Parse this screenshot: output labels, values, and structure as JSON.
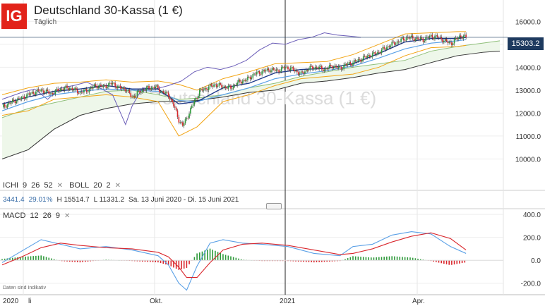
{
  "header": {
    "title": "Deutschland 30-Kassa (1 €)",
    "subtitle": "Täglich",
    "logo": "IG"
  },
  "indicators": {
    "ichi": {
      "label": "ICHI",
      "p1": "9",
      "p2": "26",
      "p3": "52"
    },
    "boll": {
      "label": "BOLL",
      "p1": "20",
      "p2": "2"
    },
    "macd": {
      "label": "MACD",
      "p1": "12",
      "p2": "26",
      "p3": "9"
    },
    "readout": {
      "v1": "3441.4",
      "v2": "29.01%",
      "high": "H 15514.7",
      "low": "L 11331.2",
      "range": "Sa. 13 Juni 2020 - Di. 15 Juni 2021"
    }
  },
  "last_price": "15303.2",
  "watermark": "Deutschland 30-Kassa (1 €)",
  "disclaimer": "Daten sind Indikativ",
  "colors": {
    "up": "#2e9a3a",
    "down": "#d9262c",
    "ichimoku_cloud": "#eef7ea",
    "boll": "#f2a516",
    "tenkan": "#1e3a8a",
    "kijun": "#5aa0e6",
    "chikou": "#6b5db8",
    "macd": "#5aa0e6",
    "signal": "#d9262c"
  },
  "chart_data": [
    {
      "type": "candlestick",
      "ylim": [
        9000,
        16500
      ],
      "yticks": [
        "16000.0",
        "15000.0",
        "14000.0",
        "13000.0",
        "12000.0",
        "11000.0",
        "10000.0"
      ],
      "xticks": [
        "2020",
        "li",
        "Okt.",
        "2021",
        "Apr."
      ],
      "close_path": [
        [
          0,
          12250
        ],
        [
          8,
          12500
        ],
        [
          15,
          12650
        ],
        [
          22,
          12850
        ],
        [
          30,
          13000
        ],
        [
          38,
          12850
        ],
        [
          45,
          13050
        ],
        [
          52,
          13100
        ],
        [
          60,
          12900
        ],
        [
          66,
          13000
        ],
        [
          72,
          13200
        ],
        [
          78,
          13150
        ],
        [
          85,
          13300
        ],
        [
          90,
          13100
        ],
        [
          95,
          13050
        ],
        [
          100,
          12700
        ],
        [
          105,
          12900
        ],
        [
          110,
          13050
        ],
        [
          118,
          13150
        ],
        [
          122,
          12950
        ],
        [
          128,
          12800
        ],
        [
          133,
          12200
        ],
        [
          136,
          11700
        ],
        [
          139,
          11450
        ],
        [
          143,
          11900
        ],
        [
          147,
          12400
        ],
        [
          152,
          12950
        ],
        [
          158,
          13100
        ],
        [
          164,
          13250
        ],
        [
          170,
          13150
        ],
        [
          176,
          13100
        ],
        [
          182,
          13350
        ],
        [
          188,
          13450
        ],
        [
          194,
          13700
        ],
        [
          200,
          13800
        ],
        [
          206,
          13900
        ],
        [
          212,
          13850
        ],
        [
          218,
          14000
        ],
        [
          224,
          13900
        ],
        [
          230,
          13700
        ],
        [
          236,
          13950
        ],
        [
          242,
          14000
        ],
        [
          248,
          13900
        ],
        [
          254,
          14050
        ],
        [
          260,
          13950
        ],
        [
          264,
          14100
        ],
        [
          270,
          14200
        ],
        [
          276,
          14350
        ],
        [
          282,
          14500
        ],
        [
          288,
          14600
        ],
        [
          294,
          14800
        ],
        [
          300,
          15000
        ],
        [
          306,
          15150
        ],
        [
          312,
          15300
        ],
        [
          318,
          15250
        ],
        [
          324,
          15200
        ],
        [
          330,
          15350
        ],
        [
          336,
          15300
        ],
        [
          342,
          15100
        ],
        [
          346,
          15050
        ],
        [
          352,
          15350
        ],
        [
          357,
          15303
        ]
      ],
      "tenkan": [
        [
          0,
          12400
        ],
        [
          20,
          12700
        ],
        [
          40,
          12950
        ],
        [
          60,
          13050
        ],
        [
          80,
          13200
        ],
        [
          100,
          13050
        ],
        [
          120,
          13050
        ],
        [
          136,
          12400
        ],
        [
          150,
          12500
        ],
        [
          170,
          13100
        ],
        [
          190,
          13300
        ],
        [
          210,
          13750
        ],
        [
          230,
          13900
        ],
        [
          250,
          13950
        ],
        [
          270,
          14150
        ],
        [
          290,
          14600
        ],
        [
          310,
          15100
        ],
        [
          330,
          15250
        ],
        [
          350,
          15250
        ],
        [
          357,
          15300
        ]
      ],
      "kijun": [
        [
          0,
          12100
        ],
        [
          20,
          12500
        ],
        [
          40,
          12800
        ],
        [
          60,
          12950
        ],
        [
          80,
          13050
        ],
        [
          100,
          13000
        ],
        [
          120,
          12950
        ],
        [
          136,
          12550
        ],
        [
          150,
          12500
        ],
        [
          170,
          12800
        ],
        [
          190,
          13100
        ],
        [
          210,
          13500
        ],
        [
          230,
          13700
        ],
        [
          250,
          13850
        ],
        [
          270,
          14050
        ],
        [
          290,
          14400
        ],
        [
          310,
          14800
        ],
        [
          330,
          15050
        ],
        [
          350,
          15150
        ],
        [
          357,
          15200
        ]
      ],
      "chikou": [
        [
          0,
          12600
        ],
        [
          15,
          12900
        ],
        [
          25,
          13050
        ],
        [
          35,
          12600
        ],
        [
          45,
          13100
        ],
        [
          55,
          13200
        ],
        [
          65,
          13350
        ],
        [
          75,
          13100
        ],
        [
          85,
          12800
        ],
        [
          95,
          11500
        ],
        [
          100,
          12300
        ],
        [
          108,
          13100
        ],
        [
          118,
          13050
        ],
        [
          128,
          13200
        ],
        [
          138,
          13400
        ],
        [
          148,
          13800
        ],
        [
          158,
          14000
        ],
        [
          168,
          13900
        ],
        [
          178,
          14050
        ],
        [
          188,
          14300
        ],
        [
          198,
          14750
        ],
        [
          208,
          15050
        ],
        [
          218,
          15000
        ],
        [
          228,
          15200
        ],
        [
          238,
          15300
        ],
        [
          248,
          15500
        ],
        [
          258,
          15400
        ],
        [
          268,
          15350
        ],
        [
          276,
          15300
        ]
      ],
      "senkou_a": [
        [
          0,
          11800
        ],
        [
          20,
          12200
        ],
        [
          40,
          12450
        ],
        [
          60,
          12700
        ],
        [
          80,
          12950
        ],
        [
          100,
          13000
        ],
        [
          120,
          12800
        ],
        [
          136,
          12600
        ],
        [
          150,
          12650
        ],
        [
          170,
          12800
        ],
        [
          190,
          13100
        ],
        [
          210,
          13300
        ],
        [
          230,
          13600
        ],
        [
          250,
          13800
        ],
        [
          270,
          14000
        ],
        [
          290,
          14150
        ],
        [
          310,
          14300
        ],
        [
          330,
          14700
        ],
        [
          350,
          14900
        ],
        [
          370,
          15050
        ],
        [
          383,
          15150
        ]
      ],
      "senkou_b": [
        [
          0,
          10000
        ],
        [
          20,
          10400
        ],
        [
          40,
          11300
        ],
        [
          60,
          11900
        ],
        [
          80,
          12200
        ],
        [
          100,
          12400
        ],
        [
          120,
          12500
        ],
        [
          136,
          12500
        ],
        [
          150,
          12550
        ],
        [
          170,
          12700
        ],
        [
          190,
          12900
        ],
        [
          210,
          13000
        ],
        [
          230,
          13300
        ],
        [
          250,
          13400
        ],
        [
          270,
          13550
        ],
        [
          290,
          13750
        ],
        [
          310,
          13900
        ],
        [
          330,
          14200
        ],
        [
          350,
          14500
        ],
        [
          370,
          14650
        ],
        [
          383,
          14700
        ]
      ],
      "boll_upper": [
        [
          0,
          12800
        ],
        [
          20,
          13100
        ],
        [
          40,
          13300
        ],
        [
          60,
          13350
        ],
        [
          80,
          13450
        ],
        [
          100,
          13350
        ],
        [
          120,
          13400
        ],
        [
          136,
          13250
        ],
        [
          150,
          13000
        ],
        [
          170,
          13500
        ],
        [
          190,
          13800
        ],
        [
          210,
          14150
        ],
        [
          230,
          14200
        ],
        [
          250,
          14250
        ],
        [
          270,
          14550
        ],
        [
          290,
          15000
        ],
        [
          310,
          15450
        ],
        [
          330,
          15500
        ],
        [
          350,
          15550
        ],
        [
          357,
          15550
        ]
      ],
      "boll_lower": [
        [
          0,
          11900
        ],
        [
          20,
          12100
        ],
        [
          40,
          12600
        ],
        [
          60,
          12700
        ],
        [
          80,
          12800
        ],
        [
          100,
          12700
        ],
        [
          120,
          12500
        ],
        [
          136,
          11000
        ],
        [
          150,
          11400
        ],
        [
          170,
          12500
        ],
        [
          190,
          12800
        ],
        [
          210,
          13200
        ],
        [
          230,
          13500
        ],
        [
          250,
          13600
        ],
        [
          270,
          13700
        ],
        [
          290,
          14000
        ],
        [
          310,
          14500
        ],
        [
          330,
          14850
        ],
        [
          350,
          14900
        ],
        [
          357,
          14950
        ]
      ]
    },
    {
      "type": "macd",
      "ylim": [
        -300,
        450
      ],
      "yticks": [
        "400.0",
        "200.0",
        "0.0",
        "-200.0"
      ],
      "macd": [
        [
          0,
          -20
        ],
        [
          15,
          80
        ],
        [
          30,
          180
        ],
        [
          45,
          140
        ],
        [
          60,
          100
        ],
        [
          80,
          120
        ],
        [
          100,
          90
        ],
        [
          120,
          40
        ],
        [
          128,
          -40
        ],
        [
          136,
          -200
        ],
        [
          142,
          -260
        ],
        [
          150,
          -50
        ],
        [
          160,
          150
        ],
        [
          170,
          180
        ],
        [
          185,
          150
        ],
        [
          200,
          140
        ],
        [
          220,
          120
        ],
        [
          240,
          60
        ],
        [
          260,
          40
        ],
        [
          270,
          120
        ],
        [
          285,
          140
        ],
        [
          300,
          220
        ],
        [
          315,
          250
        ],
        [
          330,
          230
        ],
        [
          345,
          120
        ],
        [
          357,
          60
        ]
      ],
      "signal": [
        [
          0,
          -40
        ],
        [
          15,
          30
        ],
        [
          30,
          110
        ],
        [
          45,
          150
        ],
        [
          60,
          130
        ],
        [
          80,
          110
        ],
        [
          100,
          100
        ],
        [
          120,
          70
        ],
        [
          128,
          30
        ],
        [
          136,
          -60
        ],
        [
          142,
          -150
        ],
        [
          150,
          -150
        ],
        [
          160,
          -20
        ],
        [
          170,
          90
        ],
        [
          185,
          140
        ],
        [
          200,
          150
        ],
        [
          220,
          130
        ],
        [
          240,
          90
        ],
        [
          260,
          50
        ],
        [
          270,
          60
        ],
        [
          285,
          100
        ],
        [
          300,
          160
        ],
        [
          315,
          210
        ],
        [
          330,
          240
        ],
        [
          345,
          190
        ],
        [
          357,
          90
        ]
      ]
    }
  ]
}
